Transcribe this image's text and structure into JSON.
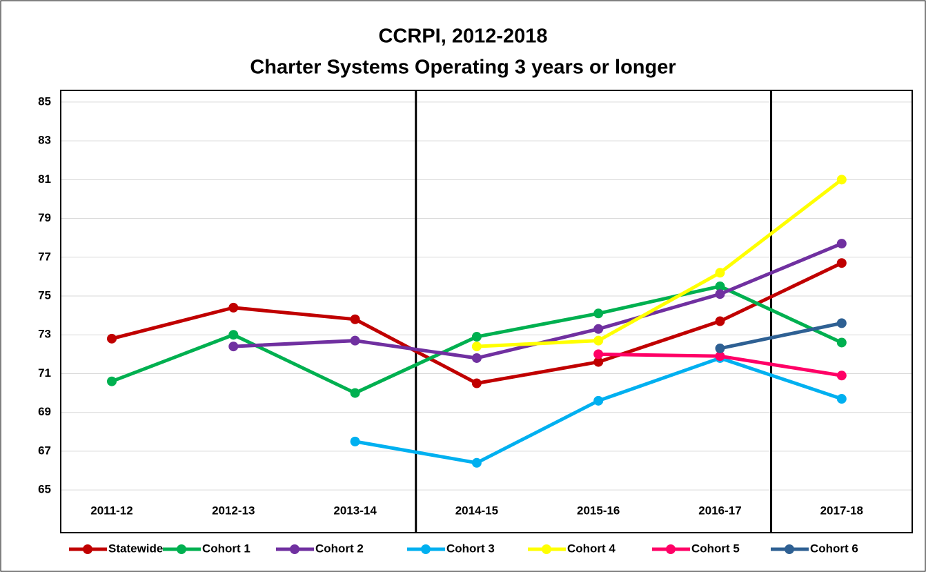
{
  "chart_data": {
    "type": "line",
    "title": "CCRPI, 2012-2018",
    "subtitle": "Charter Systems Operating 3 years or longer",
    "categories": [
      "2011-12",
      "2012-13",
      "2013-14",
      "2014-15",
      "2015-16",
      "2016-17",
      "2017-18"
    ],
    "series": [
      {
        "name": "Statewide",
        "color": "#c00000",
        "values": [
          72.8,
          74.4,
          73.8,
          70.5,
          71.6,
          73.7,
          76.7
        ]
      },
      {
        "name": "Cohort 1",
        "color": "#00b050",
        "values": [
          70.6,
          73.0,
          70.0,
          72.9,
          74.1,
          75.5,
          72.6
        ]
      },
      {
        "name": "Cohort 2",
        "color": "#7030a0",
        "values": [
          null,
          72.4,
          72.7,
          71.8,
          73.3,
          75.1,
          77.7
        ]
      },
      {
        "name": "Cohort 3",
        "color": "#00b0f0",
        "values": [
          null,
          null,
          67.5,
          66.4,
          69.6,
          71.8,
          69.7
        ]
      },
      {
        "name": "Cohort 4",
        "color": "#ffff00",
        "values": [
          null,
          null,
          null,
          72.4,
          72.7,
          76.2,
          81.0
        ]
      },
      {
        "name": "Cohort 5",
        "color": "#ff0066",
        "values": [
          null,
          null,
          null,
          null,
          72.0,
          71.9,
          70.9
        ]
      },
      {
        "name": "Cohort 6",
        "color": "#2e6093",
        "values": [
          null,
          null,
          null,
          null,
          null,
          72.3,
          73.6
        ]
      }
    ],
    "ylim": [
      62.8,
      85.6
    ],
    "yticks": [
      65,
      67,
      69,
      71,
      73,
      75,
      77,
      79,
      81,
      83,
      85
    ],
    "grid": true,
    "legend": "bottom"
  }
}
